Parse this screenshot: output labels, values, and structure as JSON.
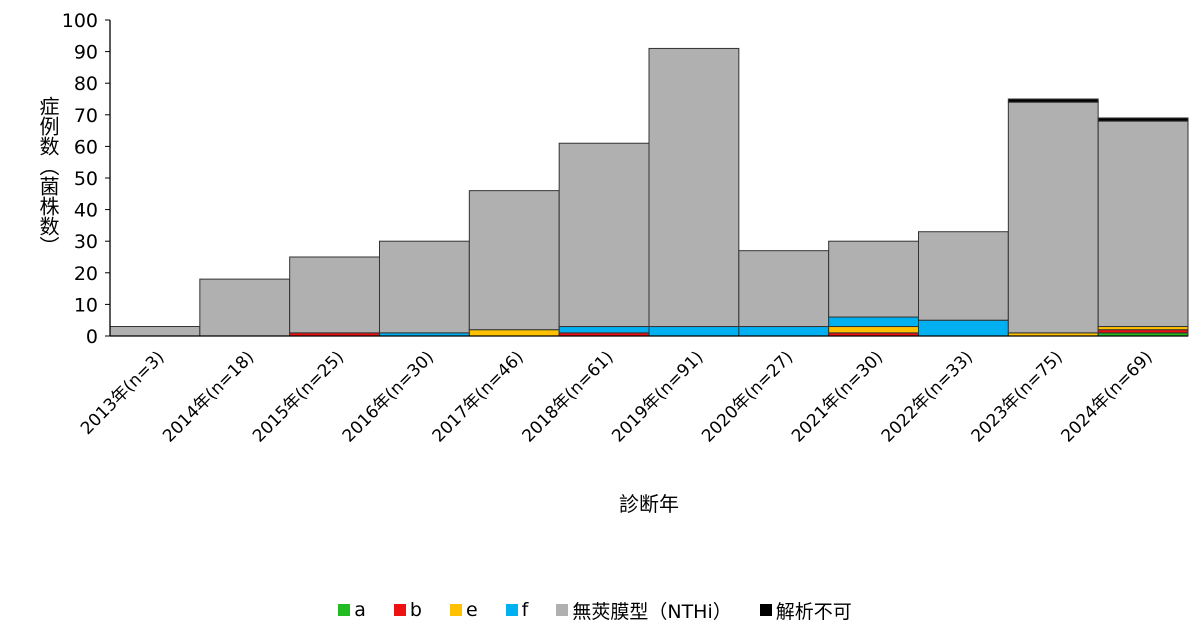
{
  "colors": {
    "a": "#22bb22",
    "b": "#ee1111",
    "e": "#ffc000",
    "f": "#00b0f0",
    "nthi": "#b0b0b0",
    "unknown": "#000000",
    "axis": "#000000"
  },
  "chart_data": {
    "type": "bar",
    "stacked": true,
    "ylabel": "症例数（菌株数）",
    "xlabel": "診断年",
    "ylim": [
      0,
      100
    ],
    "yticks": [
      0,
      10,
      20,
      30,
      40,
      50,
      60,
      70,
      80,
      90,
      100
    ],
    "grid": false,
    "legend_position": "bottom",
    "categories": [
      "2013年(n=3)",
      "2014年(n=18)",
      "2015年(n=25)",
      "2016年(n=30)",
      "2017年(n=46)",
      "2018年(n=61)",
      "2019年(n=91)",
      "2020年(n=27)",
      "2021年(n=30)",
      "2022年(n=33)",
      "2023年(n=75)",
      "2024年(n=69)"
    ],
    "series": [
      {
        "key": "a",
        "name": "a",
        "values": [
          0,
          0,
          0,
          0,
          0,
          0,
          0,
          0,
          0,
          0,
          0,
          1
        ]
      },
      {
        "key": "b",
        "name": "b",
        "values": [
          0,
          0,
          1,
          0,
          0,
          1,
          0,
          0,
          1,
          0,
          0,
          1
        ]
      },
      {
        "key": "e",
        "name": "e",
        "values": [
          0,
          0,
          0,
          0,
          2,
          0,
          0,
          0,
          2,
          0,
          1,
          1
        ]
      },
      {
        "key": "f",
        "name": "f",
        "values": [
          0,
          0,
          0,
          1,
          0,
          2,
          3,
          3,
          3,
          5,
          0,
          0
        ]
      },
      {
        "key": "nthi",
        "name": "無莢膜型（NTHi）",
        "values": [
          3,
          18,
          24,
          29,
          44,
          58,
          88,
          24,
          24,
          28,
          73,
          65
        ]
      },
      {
        "key": "unknown",
        "name": "解析不可",
        "values": [
          0,
          0,
          0,
          0,
          0,
          0,
          0,
          0,
          0,
          0,
          1,
          1
        ]
      }
    ]
  }
}
